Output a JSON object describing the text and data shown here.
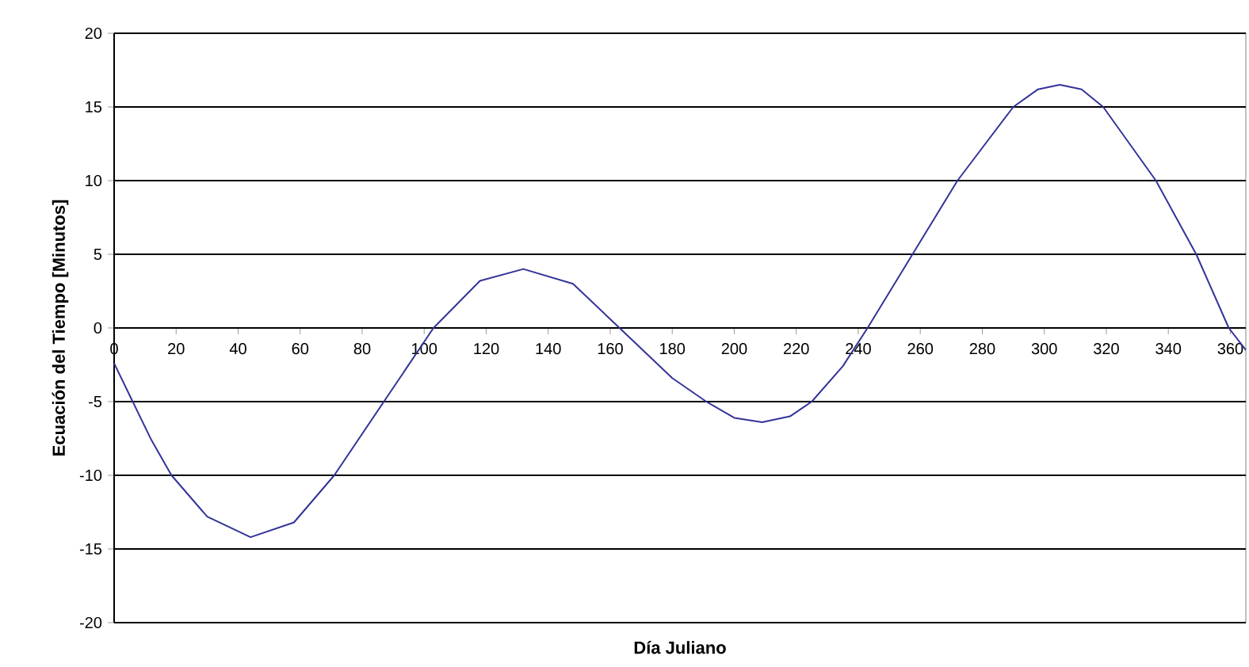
{
  "chart_data": {
    "type": "line",
    "xlabel": "Día Juliano",
    "ylabel": "Ecuación del Tiempo [Minutos]",
    "x": [
      0,
      6,
      12,
      18.5,
      30,
      44,
      58,
      71,
      87,
      103,
      118,
      132,
      148,
      163,
      180,
      191,
      200,
      209,
      218,
      225,
      235,
      243,
      257.5,
      272,
      290,
      298,
      305,
      312,
      319,
      336,
      349,
      359.5,
      365
    ],
    "series": [
      {
        "color": "#333399",
        "values": [
          -2.4,
          -5,
          -7.6,
          -10,
          -12.8,
          -14.2,
          -13.2,
          -10,
          -5,
          0,
          3.2,
          4,
          3,
          0,
          -3.4,
          -5,
          -6.1,
          -6.4,
          -6.0,
          -5,
          -2.6,
          0,
          5,
          10,
          15,
          16.2,
          16.5,
          16.2,
          15,
          10,
          5,
          0,
          -1.5
        ]
      }
    ],
    "xlim": [
      0,
      365
    ],
    "ylim": [
      -20,
      20
    ],
    "xticks": [
      0,
      20,
      40,
      60,
      80,
      100,
      120,
      140,
      160,
      180,
      200,
      220,
      240,
      260,
      280,
      300,
      320,
      340,
      360
    ],
    "yticks": [
      -20,
      -15,
      -10,
      -5,
      0,
      5,
      10,
      15,
      20
    ],
    "grid": "y",
    "marker": "none",
    "line_style": "solid"
  }
}
